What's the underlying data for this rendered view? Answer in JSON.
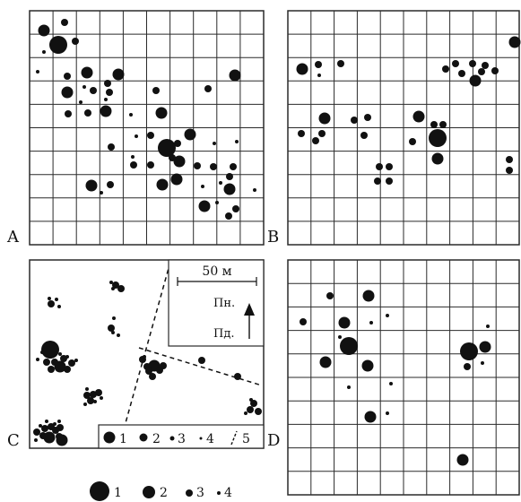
{
  "panels": [
    {
      "label": "A"
    },
    {
      "label": "B"
    },
    {
      "label": "C"
    },
    {
      "label": "D"
    }
  ],
  "scale_bar": {
    "text": "50 м"
  },
  "north_labels": {
    "north": "Пн.",
    "south": "Пд."
  },
  "panel_c_legend": [
    {
      "marker": "large-dot",
      "label": "1"
    },
    {
      "marker": "medium-dot",
      "label": "2"
    },
    {
      "marker": "small-dot",
      "label": "3"
    },
    {
      "marker": "tiny-dot",
      "label": "4"
    },
    {
      "marker": "dashed-line",
      "label": "5"
    }
  ],
  "bottom_legend": [
    {
      "marker": "large-dot",
      "label": "1"
    },
    {
      "marker": "medium-dot",
      "label": "2"
    },
    {
      "marker": "small-dot",
      "label": "3"
    },
    {
      "marker": "tiny-dot",
      "label": "4"
    }
  ],
  "colors": {
    "ink": "#111111",
    "grid": "#2a2a2a",
    "background": "#ffffff"
  }
}
